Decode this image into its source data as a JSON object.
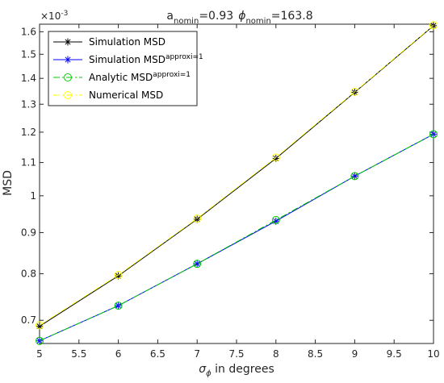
{
  "chart_data": {
    "type": "line",
    "title_parts": {
      "a_symbol": "a",
      "a_subscript": "nomin",
      "a_value": "=0.93",
      "phi_symbol": "ϕ",
      "phi_subscript": "nomin",
      "phi_value": "=163.8"
    },
    "xlabel": {
      "symbol": "σ",
      "subscript": "ϕ",
      "rest": " in degrees"
    },
    "ylabel": "MSD",
    "y_exponent": {
      "base": "×10",
      "power": "-3"
    },
    "xlim": [
      5,
      10
    ],
    "ylim": [
      0.655,
      1.635
    ],
    "y_scale": "log",
    "grid": false,
    "legend_position": "top-left",
    "x_ticks": [
      5,
      5.5,
      6,
      6.5,
      7,
      7.5,
      8,
      8.5,
      9,
      9.5,
      10
    ],
    "x_tick_labels": [
      "5",
      "5.5",
      "6",
      "6.5",
      "7",
      "7.5",
      "8",
      "8.5",
      "9",
      "9.5",
      "10"
    ],
    "y_ticks": [
      0.7,
      0.8,
      0.9,
      1.0,
      1.1,
      1.2,
      1.3,
      1.4,
      1.5,
      1.6
    ],
    "y_tick_labels": [
      "0.7",
      "0.8",
      "0.9",
      "1",
      "1.1",
      "1.2",
      "1.3",
      "1.4",
      "1.5",
      "1.6"
    ],
    "x": [
      5,
      6,
      7,
      8,
      9,
      10
    ],
    "series": [
      {
        "name": "Simulation MSD",
        "name_sup": "",
        "values": [
          0.688,
          0.795,
          0.935,
          1.113,
          1.345,
          1.628
        ],
        "color": "#000000",
        "marker": "asterisk",
        "dash": "solid"
      },
      {
        "name": "Simulation MSD",
        "name_sup": "approxi=1",
        "values": [
          0.66,
          0.73,
          0.823,
          0.93,
          1.058,
          1.193
        ],
        "color": "#0000ff",
        "marker": "asterisk",
        "dash": "solid"
      },
      {
        "name": "Analytic MSD",
        "name_sup": "approxi=1",
        "values": [
          0.66,
          0.73,
          0.823,
          0.933,
          1.058,
          1.193
        ],
        "color": "#00cc00",
        "marker": "circle",
        "dash": "dashdot"
      },
      {
        "name": "Numerical MSD",
        "name_sup": "",
        "values": [
          0.69,
          0.797,
          0.937,
          1.116,
          1.347,
          1.63
        ],
        "color": "#ffff00",
        "marker": "circle",
        "dash": "dashdot"
      }
    ]
  }
}
